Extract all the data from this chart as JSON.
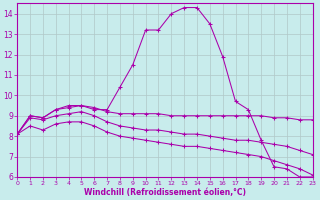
{
  "background_color": "#c8ecec",
  "line_color": "#aa00aa",
  "grid_color": "#b0c8c8",
  "xlabel": "Windchill (Refroidissement éolien,°C)",
  "xlim": [
    0,
    23
  ],
  "ylim": [
    6,
    14.5
  ],
  "yticks": [
    6,
    7,
    8,
    9,
    10,
    11,
    12,
    13,
    14
  ],
  "xticks": [
    0,
    1,
    2,
    3,
    4,
    5,
    6,
    7,
    8,
    9,
    10,
    11,
    12,
    13,
    14,
    15,
    16,
    17,
    18,
    19,
    20,
    21,
    22,
    23
  ],
  "curves": [
    {
      "x": [
        0,
        1,
        2,
        3,
        4,
        5,
        6,
        7,
        8,
        9,
        10,
        11,
        12,
        13,
        14,
        15,
        16,
        17,
        18,
        19,
        20,
        21,
        22,
        23
      ],
      "y": [
        8.1,
        9.0,
        8.9,
        9.3,
        9.5,
        9.5,
        9.3,
        9.3,
        10.4,
        11.5,
        13.2,
        13.2,
        14.0,
        14.3,
        14.3,
        13.5,
        11.9,
        9.7,
        9.3,
        7.8,
        6.5,
        6.4,
        6.0,
        6.0
      ]
    },
    {
      "x": [
        0,
        1,
        2,
        3,
        4,
        5,
        6,
        7,
        8,
        9,
        10,
        11,
        12,
        13,
        14,
        15,
        16,
        17,
        18,
        19,
        20,
        21,
        22,
        23
      ],
      "y": [
        8.1,
        9.0,
        8.9,
        9.3,
        9.4,
        9.5,
        9.4,
        9.2,
        9.1,
        9.1,
        9.1,
        9.1,
        9.0,
        9.0,
        9.0,
        9.0,
        9.0,
        9.0,
        9.0,
        9.0,
        8.9,
        8.9,
        8.8,
        8.8
      ]
    },
    {
      "x": [
        0,
        1,
        2,
        3,
        4,
        5,
        6,
        7,
        8,
        9,
        10,
        11,
        12,
        13,
        14,
        15,
        16,
        17,
        18,
        19,
        20,
        21,
        22,
        23
      ],
      "y": [
        8.1,
        8.9,
        8.8,
        9.0,
        9.1,
        9.2,
        9.0,
        8.7,
        8.5,
        8.4,
        8.3,
        8.3,
        8.2,
        8.1,
        8.1,
        8.0,
        7.9,
        7.8,
        7.8,
        7.7,
        7.6,
        7.5,
        7.3,
        7.1
      ]
    },
    {
      "x": [
        0,
        1,
        2,
        3,
        4,
        5,
        6,
        7,
        8,
        9,
        10,
        11,
        12,
        13,
        14,
        15,
        16,
        17,
        18,
        19,
        20,
        21,
        22,
        23
      ],
      "y": [
        8.1,
        8.5,
        8.3,
        8.6,
        8.7,
        8.7,
        8.5,
        8.2,
        8.0,
        7.9,
        7.8,
        7.7,
        7.6,
        7.5,
        7.5,
        7.4,
        7.3,
        7.2,
        7.1,
        7.0,
        6.8,
        6.6,
        6.4,
        6.1
      ]
    }
  ]
}
